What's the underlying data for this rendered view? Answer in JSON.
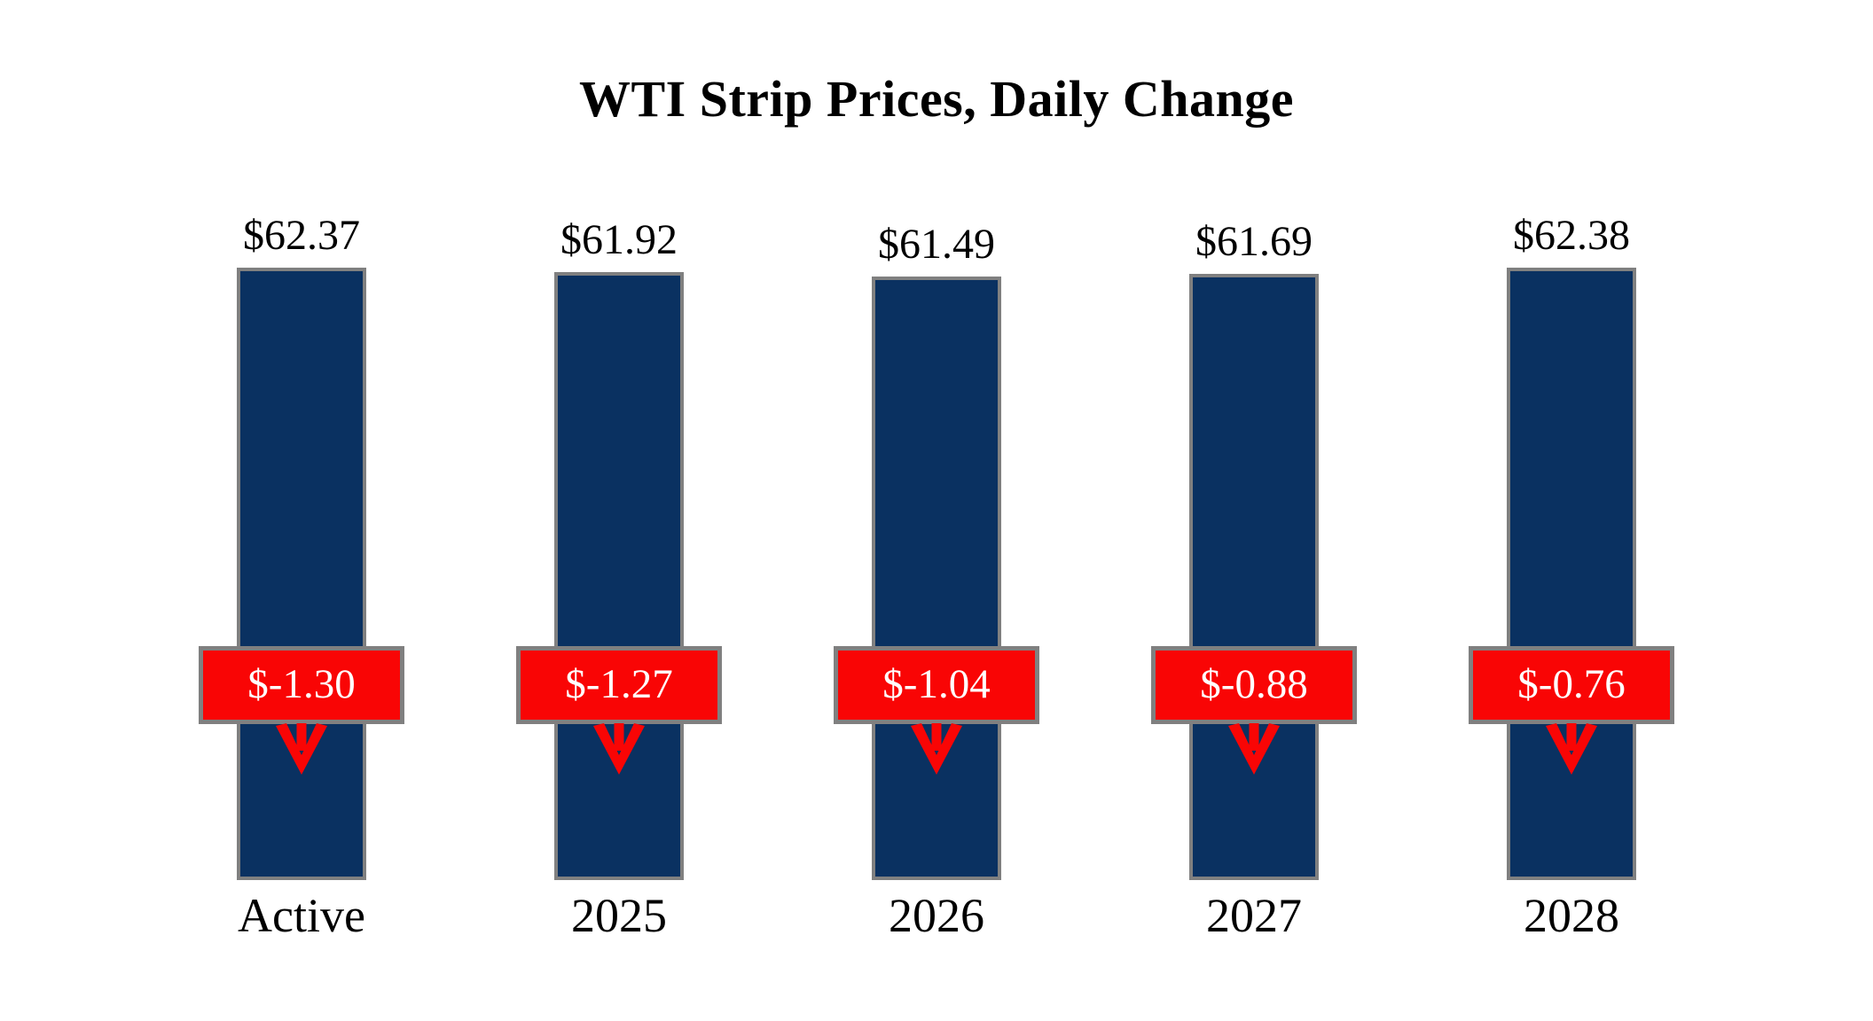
{
  "title": "WTI Strip Prices, Daily Change",
  "colors": {
    "background": "#ffffff",
    "text": "#000000",
    "bar": "#0a3161",
    "bar_border": "#808080",
    "change_bg": "#f90505",
    "change_border": "#808080",
    "change_text": "#ffffff"
  },
  "chart_data": {
    "type": "bar",
    "title": "WTI Strip Prices, Daily Change",
    "categories": [
      "Active",
      "2025",
      "2026",
      "2027",
      "2028"
    ],
    "series": [
      {
        "name": "WTI Strip Price",
        "values": [
          62.37,
          61.92,
          61.49,
          61.69,
          62.38
        ],
        "labels": [
          "$62.37",
          "$61.92",
          "$61.49",
          "$61.69",
          "$62.38"
        ]
      },
      {
        "name": "Daily Change",
        "values": [
          -1.3,
          -1.27,
          -1.04,
          -0.88,
          -0.76
        ],
        "labels": [
          "$-1.30",
          "$-1.27",
          "$-1.04",
          "$-0.88",
          "$-0.76"
        ]
      }
    ],
    "xlabel": "",
    "ylabel": "",
    "ylim": [
      0,
      64.6
    ],
    "grid": false,
    "legend": false,
    "annotations": "red badge with daily change value and red down arrow overlaid on each bar"
  }
}
